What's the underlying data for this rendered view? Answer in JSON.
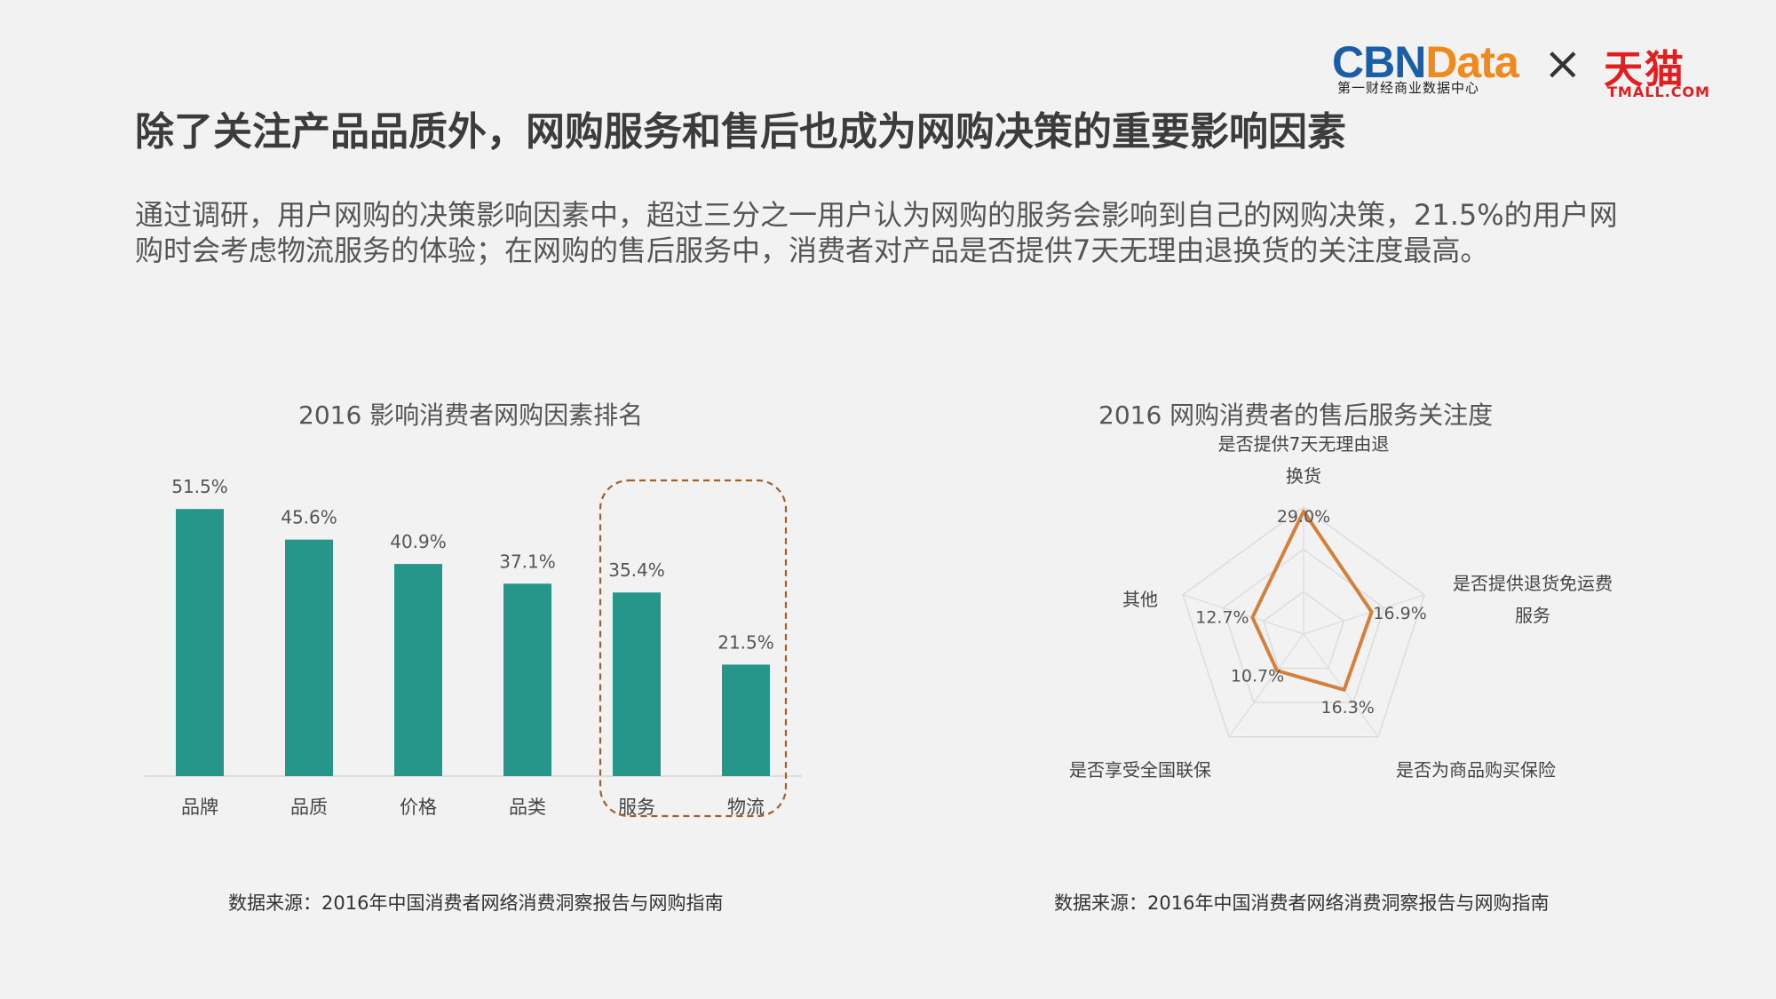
{
  "header": {
    "cbn_logo_part1": "CBN",
    "cbn_logo_part2": "Data",
    "cbn_sub": "第一财经商业数据中心",
    "times": "×",
    "tmall_logo": "天猫",
    "tmall_sub": "TMALL.COM",
    "title": "除了关注产品品质外，网购服务和售后也成为网购决策的重要影响因素"
  },
  "intro": "通过调研，用户网购的决策影响因素中，超过三分之一用户认为网购的服务会影响到自己的网购决策，21.5%的用户网购时会考虑物流服务的体验；在网购的售后服务中，消费者对产品是否提供7天无理由退换货的关注度最高。",
  "colors": {
    "bar": "#27968a",
    "radar": "#d5803a",
    "highlight_box": "#a0602a",
    "grid": "#dcdcdc"
  },
  "chart_data": [
    {
      "type": "bar",
      "title": "2016 影响消费者网购因素排名",
      "categories": [
        "品牌",
        "品质",
        "价格",
        "品类",
        "服务",
        "物流"
      ],
      "values": [
        51.5,
        45.6,
        40.9,
        37.1,
        35.4,
        21.5
      ],
      "value_labels": [
        "51.5%",
        "45.6%",
        "40.9%",
        "37.1%",
        "35.4%",
        "21.5%"
      ],
      "highlighted_categories": [
        "服务",
        "物流"
      ],
      "ylim": [
        0,
        55
      ],
      "source": "数据来源：2016年中国消费者网络消费洞察报告与网购指南"
    },
    {
      "type": "radar",
      "title": "2016 网购消费者的售后服务关注度",
      "axes": [
        {
          "lines": [
            "是否提供7天无理由退",
            "换货"
          ]
        },
        {
          "lines": [
            "是否提供退货免运费",
            "服务"
          ]
        },
        {
          "lines": [
            "是否为商品购买保险"
          ]
        },
        {
          "lines": [
            "是否享受全国联保"
          ]
        },
        {
          "lines": [
            "其他"
          ]
        }
      ],
      "values": [
        29.0,
        16.9,
        16.3,
        10.7,
        12.7
      ],
      "value_labels": [
        "29.0%",
        "16.9%",
        "16.3%",
        "10.7%",
        "12.7%"
      ],
      "rmax": 30,
      "source": "数据来源：2016年中国消费者网络消费洞察报告与网购指南"
    }
  ]
}
